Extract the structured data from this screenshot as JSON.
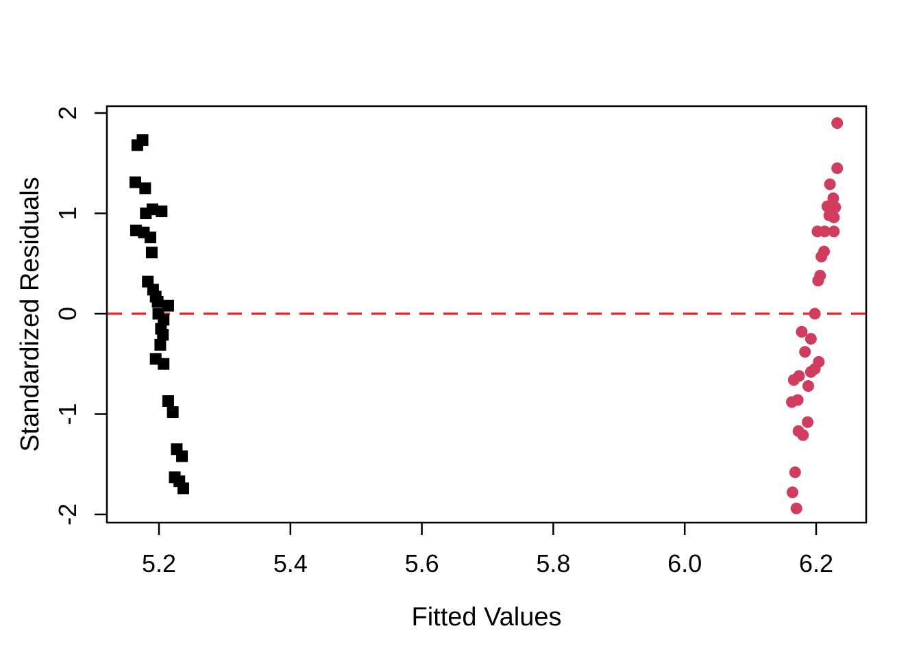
{
  "figure": {
    "background": "#ffffff",
    "axis_color": "#000000",
    "text_color": "#000000"
  },
  "chart_data": {
    "type": "scatter",
    "title": "",
    "xlabel": "Fitted Values",
    "ylabel": "Standardized Residuals",
    "xlim": [
      5.12,
      6.28
    ],
    "ylim": [
      -2.08,
      2.07
    ],
    "grid": false,
    "legend": "none",
    "x_ticks": {
      "values": [
        5.2,
        5.4,
        5.6,
        5.8,
        6.0,
        6.2
      ],
      "labels": [
        "5.2",
        "5.4",
        "5.6",
        "5.8",
        "6.0",
        "6.2"
      ]
    },
    "y_ticks": {
      "values": [
        -2,
        -1,
        0,
        1,
        2
      ],
      "labels": [
        "-2",
        "-1",
        "0",
        "1",
        "2"
      ]
    },
    "reference_line": {
      "y": 0,
      "style": "dashed",
      "color": "#F02020"
    },
    "series": [
      {
        "name": "group-fitted-5.2",
        "marker": "square",
        "color": "#000000",
        "points": [
          [
            5.175,
            1.73
          ],
          [
            5.167,
            1.68
          ],
          [
            5.164,
            1.31
          ],
          [
            5.179,
            1.25
          ],
          [
            5.19,
            1.04
          ],
          [
            5.18,
            1.0
          ],
          [
            5.204,
            1.02
          ],
          [
            5.165,
            0.83
          ],
          [
            5.177,
            0.81
          ],
          [
            5.187,
            0.76
          ],
          [
            5.189,
            0.61
          ],
          [
            5.183,
            0.32
          ],
          [
            5.191,
            0.24
          ],
          [
            5.195,
            0.17
          ],
          [
            5.198,
            0.12
          ],
          [
            5.214,
            0.08
          ],
          [
            5.199,
            0.0
          ],
          [
            5.207,
            -0.06
          ],
          [
            5.203,
            -0.15
          ],
          [
            5.206,
            -0.21
          ],
          [
            5.202,
            -0.31
          ],
          [
            5.195,
            -0.45
          ],
          [
            5.207,
            -0.5
          ],
          [
            5.214,
            -0.87
          ],
          [
            5.221,
            -0.98
          ],
          [
            5.227,
            -1.35
          ],
          [
            5.235,
            -1.42
          ],
          [
            5.224,
            -1.63
          ],
          [
            5.231,
            -1.67
          ],
          [
            5.237,
            -1.74
          ]
        ]
      },
      {
        "name": "group-fitted-6.2",
        "marker": "circle",
        "color": "#D23C5C",
        "points": [
          [
            6.232,
            1.9
          ],
          [
            6.232,
            1.45
          ],
          [
            6.221,
            1.29
          ],
          [
            6.226,
            1.15
          ],
          [
            6.217,
            1.07
          ],
          [
            6.229,
            1.06
          ],
          [
            6.22,
            0.98
          ],
          [
            6.227,
            0.96
          ],
          [
            6.202,
            0.82
          ],
          [
            6.213,
            0.82
          ],
          [
            6.227,
            0.82
          ],
          [
            6.212,
            0.62
          ],
          [
            6.208,
            0.57
          ],
          [
            6.206,
            0.38
          ],
          [
            6.203,
            0.33
          ],
          [
            6.198,
            0.0
          ],
          [
            6.178,
            -0.18
          ],
          [
            6.192,
            -0.25
          ],
          [
            6.183,
            -0.38
          ],
          [
            6.204,
            -0.48
          ],
          [
            6.198,
            -0.55
          ],
          [
            6.192,
            -0.58
          ],
          [
            6.174,
            -0.62
          ],
          [
            6.166,
            -0.66
          ],
          [
            6.188,
            -0.72
          ],
          [
            6.172,
            -0.86
          ],
          [
            6.163,
            -0.88
          ],
          [
            6.187,
            -1.08
          ],
          [
            6.173,
            -1.17
          ],
          [
            6.18,
            -1.21
          ],
          [
            6.168,
            -1.58
          ],
          [
            6.164,
            -1.78
          ],
          [
            6.17,
            -1.94
          ]
        ]
      }
    ]
  }
}
